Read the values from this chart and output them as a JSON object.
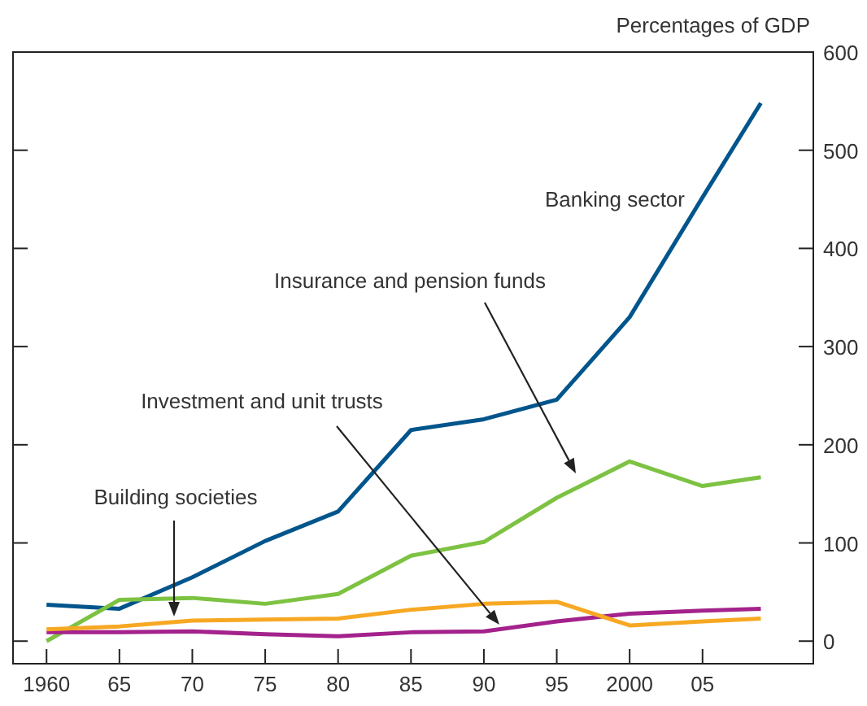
{
  "chart_data": {
    "type": "line",
    "ylabel": "Percentages of GDP",
    "x": [
      1960,
      1965,
      1970,
      1975,
      1980,
      1985,
      1990,
      1995,
      2000,
      2005,
      2009
    ],
    "xlim": [
      1957.7,
      2012.6
    ],
    "ylim": [
      -23,
      600
    ],
    "xticks": [
      1960,
      {
        "value": 1965,
        "label": "65"
      },
      {
        "value": 1970,
        "label": "70"
      },
      {
        "value": 1975,
        "label": "75"
      },
      {
        "value": 1980,
        "label": "80"
      },
      {
        "value": 1985,
        "label": "85"
      },
      {
        "value": 1990,
        "label": "90"
      },
      {
        "value": 1995,
        "label": "95"
      },
      2000,
      {
        "value": 2005,
        "label": "05"
      }
    ],
    "yticks": [
      0,
      100,
      200,
      300,
      400,
      500,
      600
    ],
    "marker": "none",
    "line_style": "solid",
    "series": [
      {
        "name": "Banking sector",
        "color": "#00558c",
        "values": [
          37,
          33,
          65,
          102,
          132,
          215,
          226,
          246,
          330,
          452,
          548
        ]
      },
      {
        "name": "Insurance and pension funds",
        "color": "#7dc242",
        "values": [
          0,
          42,
          44,
          38,
          48,
          87,
          101,
          146,
          183,
          158,
          167
        ]
      },
      {
        "name": "Investment and unit trusts",
        "color": "#a3228c",
        "values": [
          9,
          9,
          10,
          7,
          5,
          9,
          10,
          20,
          28,
          31,
          33
        ]
      },
      {
        "name": "Building societies",
        "color": "#f7a823",
        "values": [
          12,
          15,
          21,
          22,
          23,
          32,
          38,
          40,
          16,
          20,
          23
        ]
      }
    ]
  }
}
